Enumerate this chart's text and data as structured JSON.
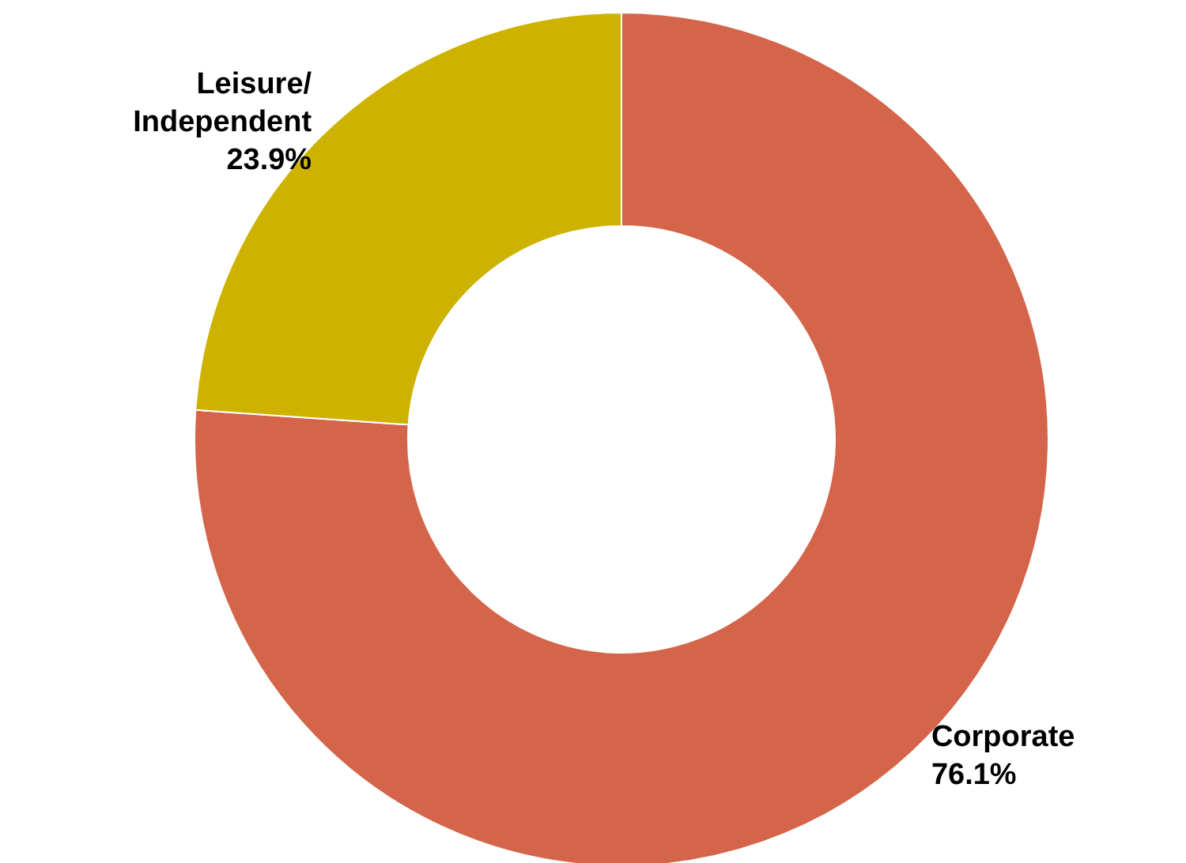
{
  "chart_data": {
    "type": "donut",
    "categories": [
      "Corporate",
      "Leisure/\nIndependent"
    ],
    "values": [
      76.1,
      23.9
    ],
    "colors": [
      "#d4654a",
      "#cdb300"
    ],
    "value_labels": [
      "76.1%",
      "23.9%"
    ],
    "legend": false
  }
}
